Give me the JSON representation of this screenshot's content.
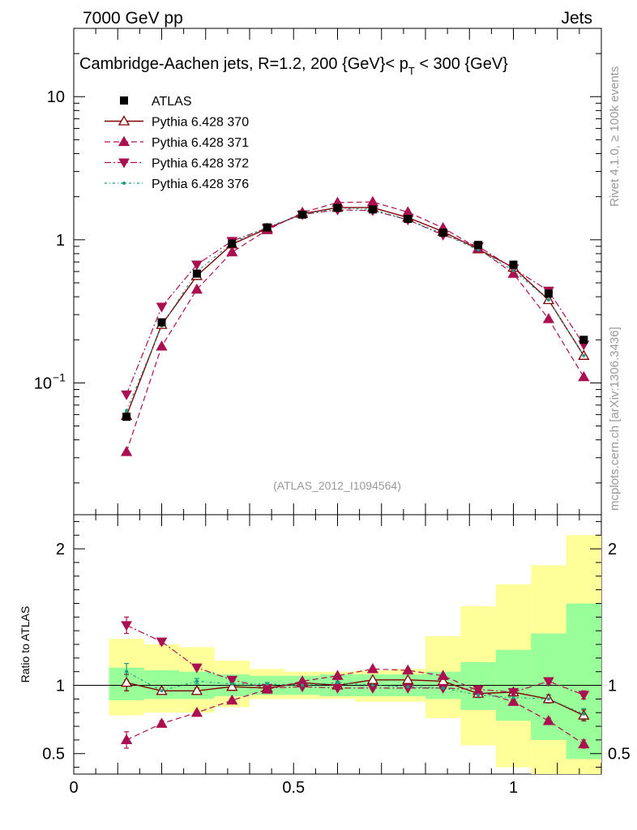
{
  "chart_data": {
    "type": "line",
    "header_left": "7000 GeV pp",
    "header_right": "Jets",
    "title": "Cambridge-Aachen jets, R=1.2,  200 {GeV}< p",
    "title_sub": "T",
    "title_tail": " < 300 {GeV}",
    "watermark": "(ATLAS_2012_I1094564)",
    "side_label_top": "Rivet 4.1.0, ≥ 100k events",
    "side_label_bottom": "mcplots.cern.ch [arXiv:1306.3436]",
    "ratio_ylabel": "Ratio to ATLAS",
    "xlim": [
      0,
      1.2
    ],
    "x_ticks": [
      0,
      0.5,
      1
    ],
    "x_tick_labels": [
      "0",
      "0.5",
      "1"
    ],
    "ylim_main": [
      0.012,
      30
    ],
    "y_major_main": [
      0.1,
      1,
      10
    ],
    "y_tick_labels_main": [
      "10",
      "1",
      "10"
    ],
    "y_tick_exp": "−1",
    "ylim_ratio": [
      0.35,
      2.25
    ],
    "y_major_ratio": [
      0.5,
      1,
      2
    ],
    "y_tick_labels_ratio": [
      "0.5",
      "1",
      "2"
    ],
    "x_edges": [
      0.08,
      0.16,
      0.24,
      0.32,
      0.4,
      0.48,
      0.56,
      0.64,
      0.72,
      0.8,
      0.88,
      0.96,
      1.04,
      1.12,
      1.2
    ],
    "x": [
      0.12,
      0.2,
      0.28,
      0.36,
      0.44,
      0.52,
      0.6,
      0.68,
      0.76,
      0.84,
      0.92,
      1.0,
      1.08,
      1.16
    ],
    "data": {
      "name": "ATLAS",
      "values": [
        0.058,
        0.265,
        0.58,
        0.94,
        1.22,
        1.5,
        1.67,
        1.63,
        1.4,
        1.12,
        0.92,
        0.67,
        0.42,
        0.2
      ]
    },
    "band_green": [
      [
        0.89,
        1.13
      ],
      [
        0.9,
        1.11
      ],
      [
        0.9,
        1.1
      ],
      [
        0.92,
        1.08
      ],
      [
        0.93,
        1.07
      ],
      [
        0.93,
        1.07
      ],
      [
        0.92,
        1.08
      ],
      [
        0.92,
        1.08
      ],
      [
        0.92,
        1.08
      ],
      [
        0.9,
        1.1
      ],
      [
        0.82,
        1.17
      ],
      [
        0.74,
        1.26
      ],
      [
        0.6,
        1.38
      ],
      [
        0.46,
        1.6
      ]
    ],
    "band_yellow": [
      [
        0.78,
        1.34
      ],
      [
        0.8,
        1.3
      ],
      [
        0.8,
        1.28
      ],
      [
        0.84,
        1.18
      ],
      [
        0.9,
        1.12
      ],
      [
        0.9,
        1.1
      ],
      [
        0.9,
        1.1
      ],
      [
        0.88,
        1.11
      ],
      [
        0.88,
        1.12
      ],
      [
        0.76,
        1.36
      ],
      [
        0.56,
        1.58
      ],
      [
        0.4,
        1.74
      ],
      [
        0.33,
        1.88
      ],
      [
        0.25,
        2.1
      ]
    ],
    "series": [
      {
        "name": "Pythia 6.428 370",
        "color": "#800000",
        "style": "solid",
        "marker": "open-triangle-up",
        "values": [
          0.059,
          0.255,
          0.56,
          0.93,
          1.2,
          1.52,
          1.68,
          1.68,
          1.43,
          1.14,
          0.86,
          0.64,
          0.38,
          0.155
        ],
        "ratio": [
          1.02,
          0.96,
          0.96,
          0.99,
          0.98,
          1.02,
          1.0,
          1.04,
          1.04,
          1.03,
          0.94,
          0.95,
          0.9,
          0.78
        ],
        "ratio_err": [
          0.06,
          0.02,
          0.02,
          0.01,
          0.01,
          0.01,
          0.01,
          0.01,
          0.01,
          0.01,
          0.02,
          0.02,
          0.03,
          0.04
        ]
      },
      {
        "name": "Pythia 6.428 371",
        "color": "#aa1050",
        "style": "dashed",
        "marker": "triangle-up",
        "values": [
          0.033,
          0.18,
          0.45,
          0.82,
          1.17,
          1.55,
          1.82,
          1.84,
          1.56,
          1.21,
          0.87,
          0.58,
          0.28,
          0.11
        ],
        "ratio": [
          0.6,
          0.72,
          0.8,
          0.89,
          0.97,
          1.03,
          1.07,
          1.12,
          1.11,
          1.07,
          0.96,
          0.88,
          0.74,
          0.57
        ],
        "ratio_err": [
          0.06,
          0.02,
          0.01,
          0.01,
          0.01,
          0.01,
          0.01,
          0.01,
          0.01,
          0.01,
          0.02,
          0.02,
          0.02,
          0.03
        ]
      },
      {
        "name": "Pythia 6.428 372",
        "color": "#aa1050",
        "style": "dashdot",
        "marker": "triangle-down",
        "values": [
          0.083,
          0.34,
          0.67,
          0.98,
          1.21,
          1.5,
          1.62,
          1.6,
          1.38,
          1.08,
          0.9,
          0.63,
          0.44,
          0.185
        ],
        "ratio": [
          1.44,
          1.32,
          1.13,
          1.04,
          0.98,
          0.99,
          0.98,
          0.98,
          0.98,
          0.98,
          0.97,
          0.95,
          1.03,
          0.93
        ],
        "ratio_err": [
          0.06,
          0.02,
          0.01,
          0.01,
          0.01,
          0.01,
          0.01,
          0.01,
          0.01,
          0.01,
          0.01,
          0.02,
          0.02,
          0.03
        ]
      },
      {
        "name": "Pythia 6.428 376",
        "color": "#1a9a80",
        "style": "dotdash",
        "marker": "dot",
        "values": [
          0.064,
          0.25,
          0.6,
          0.95,
          1.23,
          1.5,
          1.66,
          1.63,
          1.38,
          1.1,
          0.85,
          0.61,
          0.38,
          0.155
        ],
        "ratio": [
          1.1,
          0.96,
          1.03,
          1.01,
          1.01,
          1.0,
          1.02,
          1.0,
          0.99,
          0.98,
          0.93,
          0.91,
          0.9,
          0.79
        ],
        "ratio_err": [
          0.06,
          0.02,
          0.02,
          0.01,
          0.01,
          0.01,
          0.01,
          0.01,
          0.01,
          0.01,
          0.02,
          0.02,
          0.03,
          0.04
        ]
      }
    ]
  }
}
